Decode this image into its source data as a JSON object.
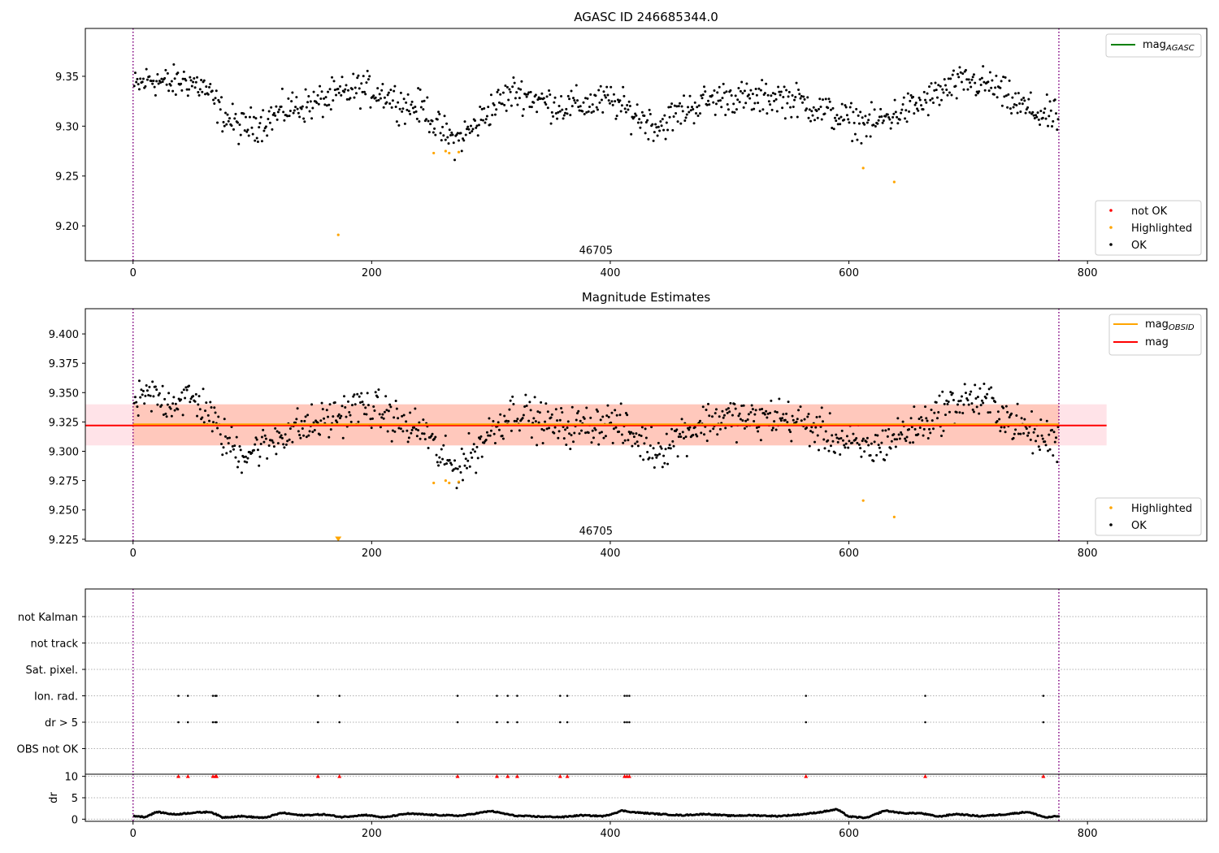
{
  "chart_data": [
    {
      "type": "scatter",
      "title": "AGASC ID 246685344.0",
      "xlim": [
        -40,
        900
      ],
      "ylim": [
        9.165,
        9.398
      ],
      "x_ticks": [
        0,
        200,
        400,
        600,
        800
      ],
      "y_ticks": [
        9.2,
        9.25,
        9.3,
        9.35
      ],
      "y_tick_labels": [
        "9.20",
        "9.25",
        "9.30",
        "9.35"
      ],
      "grid": false,
      "vlines": [
        0,
        776
      ],
      "vline_color": "#800080",
      "annotation": {
        "text": "46705",
        "x": 388,
        "y": 9.172
      },
      "legend_lines": [
        {
          "label": "mag",
          "sub": "AGASC",
          "color": "#008000"
        }
      ],
      "legend_lines_placement": "top-right",
      "legend_points": [
        {
          "label": "not OK",
          "color": "#ff0000"
        },
        {
          "label": "Highlighted",
          "color": "#ffa500"
        },
        {
          "label": "OK",
          "color": "#000000"
        }
      ],
      "legend_points_placement": "bottom-right",
      "series": [
        {
          "name": "Highlighted",
          "color": "#ffa500",
          "points": [
            [
              172,
              9.191
            ],
            [
              252,
              9.273
            ],
            [
              262,
              9.275
            ],
            [
              265,
              9.273
            ],
            [
              273,
              9.274
            ],
            [
              612,
              9.258
            ],
            [
              638,
              9.244
            ]
          ]
        }
      ],
      "ok_series_trend": [
        [
          0,
          9.338
        ],
        [
          15,
          9.348
        ],
        [
          30,
          9.342
        ],
        [
          45,
          9.346
        ],
        [
          60,
          9.338
        ],
        [
          75,
          9.312
        ],
        [
          90,
          9.298
        ],
        [
          110,
          9.305
        ],
        [
          130,
          9.318
        ],
        [
          150,
          9.322
        ],
        [
          170,
          9.33
        ],
        [
          190,
          9.338
        ],
        [
          210,
          9.333
        ],
        [
          230,
          9.32
        ],
        [
          245,
          9.318
        ],
        [
          255,
          9.298
        ],
        [
          270,
          9.285
        ],
        [
          285,
          9.298
        ],
        [
          300,
          9.318
        ],
        [
          320,
          9.335
        ],
        [
          340,
          9.326
        ],
        [
          360,
          9.32
        ],
        [
          380,
          9.322
        ],
        [
          400,
          9.326
        ],
        [
          420,
          9.312
        ],
        [
          440,
          9.3
        ],
        [
          460,
          9.315
        ],
        [
          480,
          9.325
        ],
        [
          500,
          9.33
        ],
        [
          520,
          9.326
        ],
        [
          540,
          9.33
        ],
        [
          560,
          9.324
        ],
        [
          580,
          9.315
        ],
        [
          600,
          9.306
        ],
        [
          620,
          9.302
        ],
        [
          640,
          9.313
        ],
        [
          660,
          9.322
        ],
        [
          680,
          9.336
        ],
        [
          700,
          9.345
        ],
        [
          720,
          9.34
        ],
        [
          740,
          9.322
        ],
        [
          760,
          9.312
        ],
        [
          776,
          9.308
        ]
      ],
      "ok_series_spread": 0.012
    },
    {
      "type": "scatter",
      "title": "Magnitude Estimates",
      "xlim": [
        -40,
        900
      ],
      "ylim": [
        9.2235,
        9.4215
      ],
      "x_ticks": [
        0,
        200,
        400,
        600,
        800
      ],
      "y_ticks": [
        9.225,
        9.25,
        9.275,
        9.3,
        9.325,
        9.35,
        9.375,
        9.4
      ],
      "y_tick_labels": [
        "9.225",
        "9.250",
        "9.275",
        "9.300",
        "9.325",
        "9.350",
        "9.375",
        "9.400"
      ],
      "grid": false,
      "vlines": [
        0,
        776
      ],
      "vline_color": "#800080",
      "mag_line": {
        "value": 9.322,
        "color": "#ff0000",
        "band": [
          9.305,
          9.34
        ],
        "band_x": [
          -40,
          816
        ],
        "band_color": "#ffc0cb"
      },
      "mag_obsid_line": {
        "value": 9.323,
        "color": "#ffa500",
        "band": [
          9.305,
          9.34
        ],
        "band_x": [
          0,
          776
        ],
        "band_color": "#ffa07a"
      },
      "annotation": {
        "text": "46705",
        "x": 388,
        "y": 9.229
      },
      "legend_lines": [
        {
          "label": "mag",
          "sub": "OBSID",
          "color": "#ffa500"
        },
        {
          "label": "mag",
          "sub": "",
          "color": "#ff0000"
        }
      ],
      "legend_lines_placement": "top-right",
      "legend_points": [
        {
          "label": "Highlighted",
          "color": "#ffa500"
        },
        {
          "label": "OK",
          "color": "#000000"
        }
      ],
      "legend_points_placement": "bottom-right",
      "series": [
        {
          "name": "Highlighted",
          "color": "#ffa500",
          "points": [
            [
              252,
              9.273
            ],
            [
              262,
              9.275
            ],
            [
              265,
              9.273
            ],
            [
              273,
              9.274
            ],
            [
              612,
              9.258
            ],
            [
              638,
              9.244
            ]
          ]
        }
      ],
      "off_scale_marker": {
        "x": 172,
        "y": 9.2245,
        "color": "#ffa500"
      }
    },
    {
      "type": "scatter",
      "xlim": [
        -40,
        900
      ],
      "x_ticks": [
        0,
        200,
        400,
        600,
        800
      ],
      "vlines": [
        0,
        776
      ],
      "vline_color": "#800080",
      "flag_rows": [
        "not Kalman",
        "not track",
        "Sat. pixel.",
        "Ion. rad.",
        "dr > 5",
        "OBS not OK"
      ],
      "flags": {
        "Ion. rad.": [
          38,
          46,
          67,
          69,
          70,
          155,
          173,
          272,
          305,
          314,
          322,
          358,
          364,
          412,
          414,
          416,
          564,
          664,
          763
        ],
        "dr > 5": [
          38,
          46,
          67,
          69,
          70,
          155,
          173,
          272,
          305,
          314,
          322,
          358,
          364,
          412,
          414,
          416,
          564,
          664,
          763
        ]
      },
      "dr": {
        "ylabel": "dr",
        "ylim": [
          -0.5,
          10.5
        ],
        "y_ticks": [
          0,
          5,
          10
        ],
        "y_tick_labels": [
          "0",
          "5",
          "10"
        ],
        "capped_markers": {
          "value": 10,
          "color": "#ff0000",
          "x": [
            38,
            46,
            67,
            69,
            70,
            155,
            173,
            272,
            305,
            314,
            322,
            358,
            364,
            412,
            414,
            416,
            564,
            664,
            763
          ]
        },
        "trend": [
          [
            0,
            0.8
          ],
          [
            10,
            0.5
          ],
          [
            20,
            1.7
          ],
          [
            35,
            1.1
          ],
          [
            50,
            1.5
          ],
          [
            65,
            1.7
          ],
          [
            75,
            0.4
          ],
          [
            90,
            0.7
          ],
          [
            110,
            0.3
          ],
          [
            125,
            1.5
          ],
          [
            140,
            0.9
          ],
          [
            160,
            1.1
          ],
          [
            175,
            0.5
          ],
          [
            195,
            1.0
          ],
          [
            210,
            0.4
          ],
          [
            230,
            1.3
          ],
          [
            250,
            1.0
          ],
          [
            275,
            0.8
          ],
          [
            300,
            1.9
          ],
          [
            320,
            0.8
          ],
          [
            340,
            0.6
          ],
          [
            360,
            0.5
          ],
          [
            375,
            0.9
          ],
          [
            395,
            0.7
          ],
          [
            410,
            2.0
          ],
          [
            420,
            1.6
          ],
          [
            440,
            1.2
          ],
          [
            460,
            0.9
          ],
          [
            480,
            1.2
          ],
          [
            500,
            0.8
          ],
          [
            520,
            0.9
          ],
          [
            540,
            0.7
          ],
          [
            560,
            1.1
          ],
          [
            575,
            1.6
          ],
          [
            590,
            2.3
          ],
          [
            600,
            0.6
          ],
          [
            615,
            0.3
          ],
          [
            630,
            2.0
          ],
          [
            645,
            1.4
          ],
          [
            660,
            1.4
          ],
          [
            675,
            0.6
          ],
          [
            690,
            1.2
          ],
          [
            710,
            0.7
          ],
          [
            730,
            1.1
          ],
          [
            750,
            1.7
          ],
          [
            765,
            0.4
          ],
          [
            776,
            0.7
          ]
        ]
      }
    }
  ]
}
